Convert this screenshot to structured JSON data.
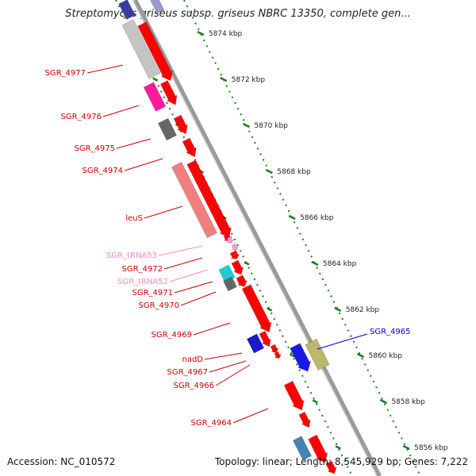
{
  "title": "Streptomyces griseus subsp. griseus NBRC 13350, complete gen...",
  "footer": {
    "accession": "Accession: NC_010572",
    "summary": "Topology: linear; Length: 8,545,929 bp; Genes: 7,222"
  },
  "colors": {
    "backbone": "#8a8a8a",
    "ticks": "#1f7a1f",
    "gene_red": "#ff0000",
    "label_red": "#cc0000",
    "label_pink": "#ee88cc",
    "label_blue": "#0000cc"
  },
  "ruler": {
    "unit": "kbp",
    "ticks": [
      {
        "label": "5874 kbp"
      },
      {
        "label": "5872 kbp"
      },
      {
        "label": "5870 kbp"
      },
      {
        "label": "5868 kbp"
      },
      {
        "label": "5866 kbp"
      },
      {
        "label": "5864 kbp"
      },
      {
        "label": "5862 kbp"
      },
      {
        "label": "5860 kbp"
      },
      {
        "label": "5858 kbp"
      },
      {
        "label": "5856 kbp"
      }
    ]
  },
  "genes": [
    {
      "label": "SGR_4977",
      "color": "red"
    },
    {
      "label": "SGR_4976",
      "color": "red"
    },
    {
      "label": "SGR_4975",
      "color": "red"
    },
    {
      "label": "SGR_4974",
      "color": "red"
    },
    {
      "label": "leuS",
      "color": "red"
    },
    {
      "label": "SGR_tRNA53",
      "color": "pink"
    },
    {
      "label": "SGR_4972",
      "color": "red"
    },
    {
      "label": "SGR_tRNA52",
      "color": "pink"
    },
    {
      "label": "SGR_4971",
      "color": "red"
    },
    {
      "label": "SGR_4970",
      "color": "red"
    },
    {
      "label": "SGR_4969",
      "color": "red"
    },
    {
      "label": "nadD",
      "color": "red"
    },
    {
      "label": "SGR_4967",
      "color": "red"
    },
    {
      "label": "SGR_4966",
      "color": "red"
    },
    {
      "label": "SGR_4964",
      "color": "red"
    },
    {
      "label": "SGR_4965",
      "color": "blue"
    }
  ]
}
